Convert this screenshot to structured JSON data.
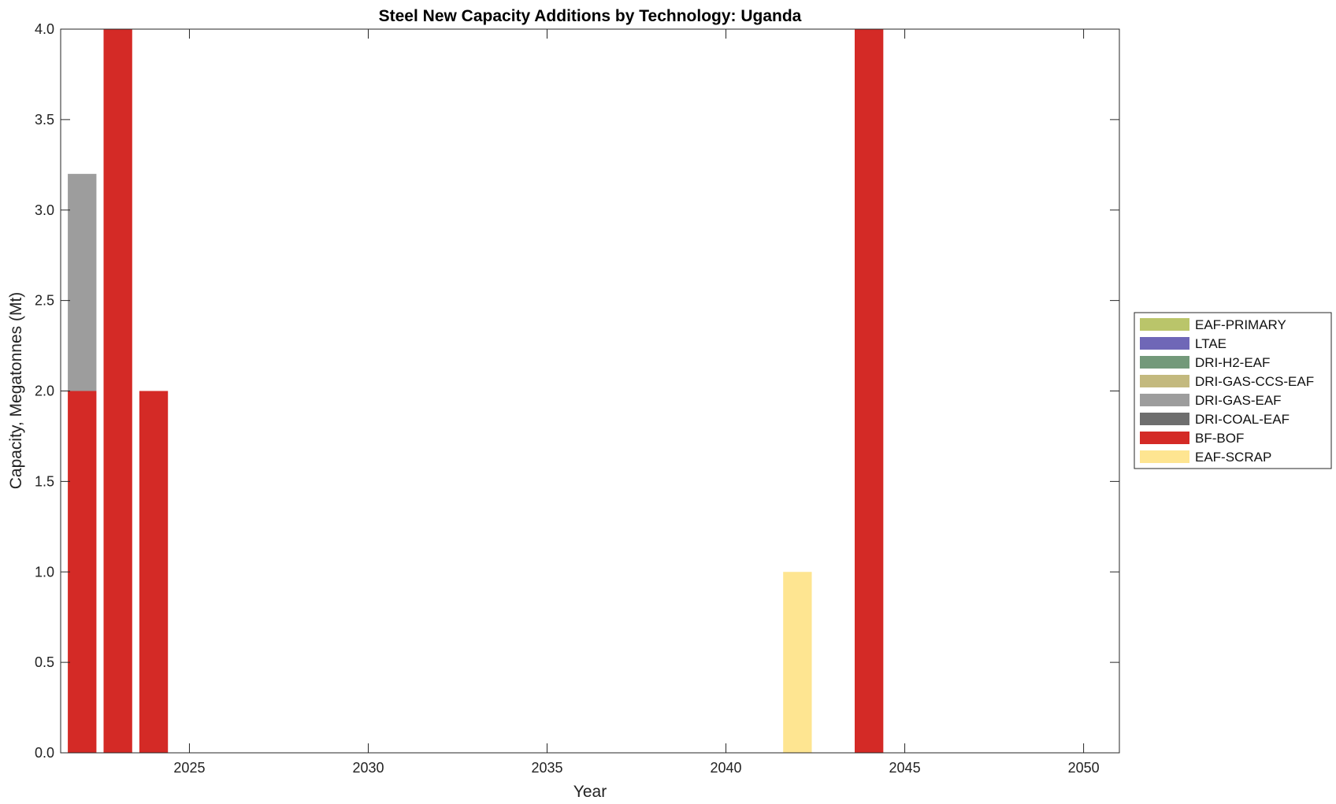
{
  "chart_data": {
    "type": "bar",
    "stacked": true,
    "title": "Steel New Capacity Additions by Technology: Uganda",
    "xlabel": "Year",
    "ylabel": "Capacity, Megatonnes (Mt)",
    "xlim": [
      2021.4,
      2051
    ],
    "ylim": [
      0,
      4
    ],
    "x_ticks": [
      2025,
      2030,
      2035,
      2040,
      2045,
      2050
    ],
    "y_ticks": [
      "0.0",
      "0.5",
      "1.0",
      "1.5",
      "2.0",
      "2.5",
      "3.0",
      "3.5",
      "4.0"
    ],
    "grid": false,
    "legend_position": "right",
    "x": [
      2022,
      2023,
      2024,
      2042,
      2044
    ],
    "series": [
      {
        "name": "EAF-SCRAP",
        "color": "#fee591",
        "values": [
          0,
          0,
          0,
          1,
          0
        ]
      },
      {
        "name": "BF-BOF",
        "color": "#d42a26",
        "values": [
          2,
          4,
          2,
          0,
          4
        ]
      },
      {
        "name": "DRI-COAL-EAF",
        "color": "#6e6e6e",
        "values": [
          0,
          0,
          0,
          0,
          0
        ]
      },
      {
        "name": "DRI-GAS-EAF",
        "color": "#9d9d9d",
        "values": [
          1.2,
          0,
          0,
          0,
          0
        ]
      },
      {
        "name": "DRI-GAS-CCS-EAF",
        "color": "#c3b97e",
        "values": [
          0,
          0,
          0,
          0,
          0
        ]
      },
      {
        "name": "DRI-H2-EAF",
        "color": "#73997a",
        "values": [
          0,
          0,
          0,
          0,
          0
        ]
      },
      {
        "name": "LTAE",
        "color": "#6f67b7",
        "values": [
          0,
          0,
          0,
          0,
          0
        ]
      },
      {
        "name": "EAF-PRIMARY",
        "color": "#bac56a",
        "values": [
          0,
          0,
          0,
          0,
          0
        ]
      }
    ],
    "legend_order": [
      "EAF-PRIMARY",
      "LTAE",
      "DRI-H2-EAF",
      "DRI-GAS-CCS-EAF",
      "DRI-GAS-EAF",
      "DRI-COAL-EAF",
      "BF-BOF",
      "EAF-SCRAP"
    ]
  }
}
